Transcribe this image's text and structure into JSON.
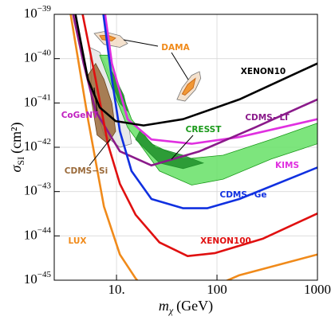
{
  "chart_data": {
    "type": "line",
    "x_label": {
      "symbol": "m",
      "subscript": "χ",
      "unit": "(GeV)"
    },
    "y_label": {
      "symbol": "σ",
      "subscript": "SI",
      "unit": "(cm²)"
    },
    "log_x": true,
    "log_y": true,
    "grid": true,
    "xlim": [
      2.4,
      1000
    ],
    "ylim": [
      1e-45,
      1e-39
    ],
    "xticks": [
      {
        "value": 10,
        "label": "10."
      },
      100,
      1000
    ],
    "yticks": [
      {
        "value": 1e-39,
        "label": "10",
        "exponent": "−39"
      },
      {
        "value": 1e-40,
        "label": "10",
        "exponent": "−40"
      },
      {
        "value": 1e-41,
        "label": "10",
        "exponent": "−41"
      },
      {
        "value": 1e-42,
        "label": "10",
        "exponent": "−42"
      },
      {
        "value": 1e-43,
        "label": "10",
        "exponent": "−43"
      },
      {
        "value": 1e-44,
        "label": "10",
        "exponent": "−44"
      },
      {
        "value": 1e-45,
        "label": "10",
        "exponent": "−45"
      }
    ],
    "regions": [
      {
        "fill": "#e4e4e4",
        "stroke": "#888888",
        "x": [
          5.4,
          6.8,
          9.0,
          12.9,
          14.1,
          10.8,
          7.5,
          5.7
        ],
        "y": [
          1.8e-40,
          1.4e-40,
          3.4e-41,
          4.3e-42,
          1.2e-42,
          1e-42,
          1.9e-42,
          1.5e-41
        ]
      },
      {
        "fill": "#66e066",
        "stroke": "#1a9a1a",
        "x": [
          6.8,
          9.0,
          12.9,
          26.8,
          56,
          115,
          345,
          1000,
          1000,
          345,
          115,
          46,
          22.3,
          14.1,
          10.8,
          8.2
        ],
        "y": [
          1.2e-40,
          2.2e-41,
          2.8e-42,
          2.9e-43,
          1.4e-43,
          1.9e-43,
          5.4e-43,
          1.2e-42,
          3.5e-42,
          1.5e-42,
          6.6e-43,
          5.4e-43,
          1.2e-42,
          4.3e-42,
          2.2e-41,
          1.2e-40
        ]
      },
      {
        "fill": "#1f8f2a",
        "stroke": "#1f8f2a",
        "x": [
          15.5,
          26.8,
          46,
          73,
          46,
          24.5,
          17.0
        ],
        "y": [
          1.5e-42,
          4.4e-43,
          3.3e-43,
          4.4e-43,
          6.6e-43,
          1e-42,
          2.3e-42
        ]
      },
      {
        "fill": "#1f8f2a",
        "stroke": "#1f8f2a",
        "x": [
          9.0,
          11.8,
          12.9,
          10.8,
          9.0
        ],
        "y": [
          5.1e-41,
          1.5e-41,
          6.5e-42,
          9.8e-42,
          2.8e-41
        ]
      },
      {
        "fill": "#9a6a3a",
        "stroke": "#6b4420",
        "x": [
          5.2,
          6.2,
          7.5,
          9.0,
          9.8,
          8.2,
          6.4,
          5.7
        ],
        "y": [
          4.2e-41,
          7.8e-41,
          3.4e-41,
          9.8e-42,
          2.3e-42,
          1.2e-42,
          1.9e-42,
          9.8e-42
        ]
      },
      {
        "fill": "#f2dcc4",
        "stroke": "#777777",
        "x": [
          6.0,
          7.5,
          10.8,
          12.9,
          10.8,
          7.5
        ],
        "y": [
          3.7e-40,
          4.1e-40,
          3.3e-40,
          2.2e-40,
          1.8e-40,
          2.1e-40
        ]
      },
      {
        "fill": "#f08a1a",
        "stroke": "#c06010",
        "x": [
          6.8,
          8.2,
          9.8,
          9.0,
          7.2
        ],
        "y": [
          3.3e-40,
          3.4e-40,
          2.9e-40,
          2.5e-40,
          2.7e-40
        ]
      },
      {
        "fill": "#f2dcc4",
        "stroke": "#777777",
        "x": [
          40,
          45,
          56,
          67,
          69,
          61,
          48
        ],
        "y": [
          1.2e-41,
          2.2e-41,
          4.2e-41,
          5.1e-41,
          3.6e-41,
          2e-41,
          1.1e-41
        ]
      },
      {
        "fill": "#f08a1a",
        "stroke": "#c06010",
        "x": [
          45,
          51,
          61,
          58,
          48
        ],
        "y": [
          1.6e-41,
          2.6e-41,
          3.6e-41,
          2.2e-41,
          1.5e-41
        ]
      }
    ],
    "series": [
      {
        "color": "#e030e0",
        "x": [
          7.7,
          9.0,
          12.9,
          22.3,
          56,
          167,
          1000
        ],
        "values": [
          1e-39,
          7.8e-41,
          4.3e-42,
          1.5e-42,
          1.2e-42,
          1.7e-42,
          4.3e-42
        ]
      },
      {
        "color": "#8a1a8a",
        "x": [
          3.7,
          4.7,
          6.2,
          10.8,
          22.3,
          67,
          240,
          1000
        ],
        "values": [
          1e-39,
          7.8e-41,
          6.5e-42,
          8.1e-43,
          3.9e-43,
          8.1e-43,
          2.8e-42,
          1.2e-41
        ]
      },
      {
        "color": "#1030e0",
        "x": [
          7.4,
          9.0,
          10.8,
          14.1,
          22.3,
          46,
          80,
          167,
          1000
        ],
        "values": [
          1e-39,
          3.4e-41,
          2.3e-42,
          2.9e-43,
          6.8e-44,
          4.2e-44,
          4.2e-44,
          6.8e-44,
          3.5e-43
        ]
      },
      {
        "color": "#e01010",
        "x": [
          4.6,
          6.2,
          8.2,
          10.8,
          15.5,
          26.8,
          51,
          96,
          288,
          1000
        ],
        "values": [
          1e-39,
          3.4e-41,
          1.2e-42,
          1.5e-43,
          3e-44,
          7.1e-45,
          3.5e-45,
          4.1e-45,
          8.7e-45,
          3.2e-44
        ]
      },
      {
        "color": "#f08a1a",
        "x": [
          3.5,
          5.2,
          7.5,
          10.8,
          15.5,
          26.8,
          56,
          167,
          1000
        ],
        "values": [
          1e-39,
          4.3e-42,
          4.6e-44,
          3.8e-45,
          1.1e-45,
          2.6e-46,
          4.4e-46,
          1.3e-45,
          3.8e-45
        ]
      },
      {
        "color": "#000000",
        "x": [
          3.9,
          5.2,
          6.8,
          9.8,
          18.6,
          46,
          167,
          1000
        ],
        "values": [
          1e-39,
          3.4e-41,
          7.9e-42,
          3.9e-42,
          3.1e-42,
          4.3e-42,
          1.2e-41,
          7.8e-41
        ]
      }
    ],
    "annotations": [
      {
        "text": "DAMA",
        "color": "#f08a1a"
      },
      {
        "text": "XENON10",
        "color": "#000000"
      },
      {
        "text": "CoGeNT",
        "color": "#c020c0"
      },
      {
        "text": "CRESST",
        "color": "#1a9a1a"
      },
      {
        "text": "CDMS−LT",
        "color": "#8a1a8a"
      },
      {
        "text": "KIMS",
        "color": "#e030e0"
      },
      {
        "text": "CDMS−Si",
        "color": "#9a6a3a"
      },
      {
        "text": "CDMS−Ge",
        "color": "#1030e0"
      },
      {
        "text": "LUX",
        "color": "#f08a1a"
      },
      {
        "text": "XENON100",
        "color": "#e01010"
      }
    ]
  }
}
